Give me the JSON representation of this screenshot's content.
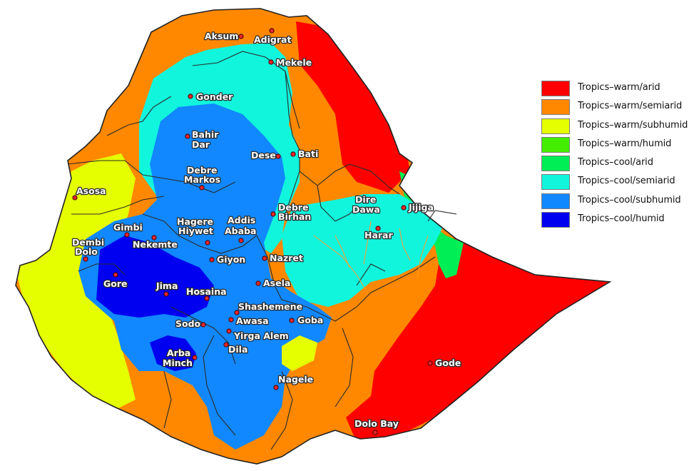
{
  "legend": [
    {
      "label": "Tropics–warm/arid",
      "color": "#ff0000"
    },
    {
      "label": "Tropics–warm/semiarid",
      "color": "#ff8800"
    },
    {
      "label": "Tropics–warm/subhumid",
      "color": "#e6ff00"
    },
    {
      "label": "Tropics–warm/humid",
      "color": "#44ee00"
    },
    {
      "label": "Tropics–cool/arid",
      "color": "#00ee55"
    },
    {
      "label": "Tropics–cool/semiarid",
      "color": "#11f5dd"
    },
    {
      "label": "Tropics–cool/subhumid",
      "color": "#1188ff"
    },
    {
      "label": "Tropics–cool/humid",
      "color": "#0000f0"
    }
  ],
  "cities": {
    "aksum": "Aksum",
    "adigrat": "Adigrat",
    "mekele": "Mekele",
    "gonder": "Gonder",
    "bahir_dar_1": "Bahir",
    "bahir_dar_2": "Dar",
    "dese": "Dese",
    "bati": "Bati",
    "debre_markos_1": "Debre",
    "debre_markos_2": "Markos",
    "asosa": "Asosa",
    "debre_birhan_1": "Debre",
    "debre_birhan_2": "Birhan",
    "dire_dawa_1": "Dire",
    "dire_dawa_2": "Dawa",
    "harar": "Harar",
    "jijiga": "Jijiga",
    "gimbi": "Gimbi",
    "nekemte": "Nekemte",
    "hagere_hiywet_1": "Hagere",
    "hagere_hiywet_2": "Hiywet",
    "addis_ababa_1": "Addis",
    "addis_ababa_2": "Ababa",
    "dembi_dolo_1": "Dembi",
    "dembi_dolo_2": "Dolo",
    "giyon": "Giyon",
    "nazret": "Nazret",
    "gore": "Gore",
    "jima": "Jima",
    "asela": "Asela",
    "hosaina": "Hosaina",
    "shashemene": "Shashemene",
    "awasa": "Awasa",
    "goba": "Goba",
    "sodo": "Sodo",
    "yirga_alem": "Yirga Alem",
    "dila": "Dila",
    "arba_minch_1": "Arba",
    "arba_minch_2": "Minch",
    "gode": "Gode",
    "nagele": "Nagele",
    "dolo_bay": "Dolo Bay"
  }
}
